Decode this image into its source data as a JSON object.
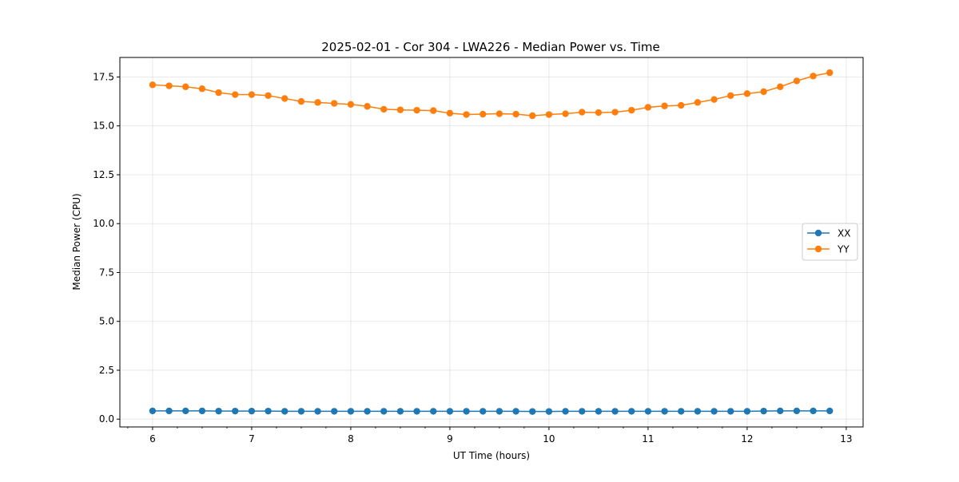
{
  "chart_data": {
    "type": "line",
    "title": "2025-02-01 - Cor 304 - LWA226 - Median Power vs. Time",
    "xlabel": "UT Time (hours)",
    "ylabel": "Median Power (CPU)",
    "xlim": [
      5.67,
      13.17
    ],
    "ylim": [
      -0.4,
      18.5
    ],
    "xticks": [
      6,
      7,
      8,
      9,
      10,
      11,
      12,
      13
    ],
    "xtick_labels": [
      "6",
      "7",
      "8",
      "9",
      "10",
      "11",
      "12",
      "13"
    ],
    "yticks": [
      0,
      2.5,
      5,
      7.5,
      10,
      12.5,
      15,
      17.5
    ],
    "ytick_labels": [
      "0.0",
      "2.5",
      "5.0",
      "7.5",
      "10.0",
      "12.5",
      "15.0",
      "17.5"
    ],
    "grid": true,
    "legend_position": "center-right",
    "x": [
      6.0,
      6.1667,
      6.3333,
      6.5,
      6.6667,
      6.8333,
      7.0,
      7.1667,
      7.3333,
      7.5,
      7.6667,
      7.8333,
      8.0,
      8.1667,
      8.3333,
      8.5,
      8.6667,
      8.8333,
      9.0,
      9.1667,
      9.3333,
      9.5,
      9.6667,
      9.8333,
      10.0,
      10.1667,
      10.3333,
      10.5,
      10.6667,
      10.8333,
      11.0,
      11.1667,
      11.3333,
      11.5,
      11.6667,
      11.8333,
      12.0,
      12.1667,
      12.3333,
      12.5,
      12.6667,
      12.8333
    ],
    "series": [
      {
        "name": "XX",
        "color": "#1f77b4",
        "values": [
          0.42,
          0.42,
          0.42,
          0.42,
          0.41,
          0.41,
          0.41,
          0.41,
          0.4,
          0.4,
          0.4,
          0.4,
          0.4,
          0.4,
          0.4,
          0.4,
          0.4,
          0.4,
          0.4,
          0.4,
          0.4,
          0.4,
          0.4,
          0.39,
          0.39,
          0.4,
          0.4,
          0.4,
          0.4,
          0.4,
          0.4,
          0.4,
          0.4,
          0.4,
          0.4,
          0.4,
          0.4,
          0.41,
          0.42,
          0.42,
          0.42,
          0.42
        ]
      },
      {
        "name": "YY",
        "color": "#ff7f0e",
        "values": [
          17.1,
          17.05,
          17.0,
          16.9,
          16.7,
          16.6,
          16.6,
          16.55,
          16.4,
          16.25,
          16.2,
          16.15,
          16.1,
          16.0,
          15.85,
          15.82,
          15.8,
          15.78,
          15.65,
          15.58,
          15.6,
          15.62,
          15.6,
          15.52,
          15.58,
          15.62,
          15.7,
          15.68,
          15.7,
          15.8,
          15.95,
          16.02,
          16.05,
          16.2,
          16.35,
          16.55,
          16.65,
          16.75,
          17.0,
          17.3,
          17.55,
          17.72
        ]
      }
    ]
  }
}
